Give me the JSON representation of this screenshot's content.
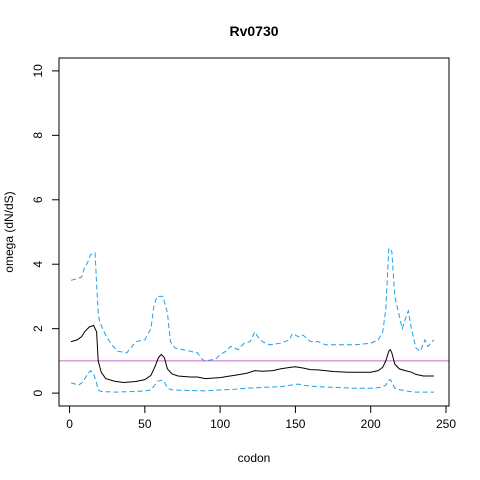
{
  "chart_data": {
    "type": "line",
    "title": "Rv0730",
    "xlabel": "codon",
    "ylabel": "omega (dN/dS)",
    "xlim": [
      -7,
      252
    ],
    "ylim": [
      -0.4,
      10.4
    ],
    "x_ticks": [
      0,
      50,
      100,
      150,
      200,
      250
    ],
    "y_ticks": [
      0,
      2,
      4,
      6,
      8,
      10
    ],
    "grid": false,
    "legend": "none",
    "reference_line": {
      "y": 1,
      "color": "#cc66cc"
    },
    "series": [
      {
        "role": "upper",
        "color": "#1ea0e6",
        "style": "dashed",
        "points": [
          [
            1,
            3.5
          ],
          [
            5,
            3.55
          ],
          [
            8,
            3.6
          ],
          [
            10,
            3.9
          ],
          [
            12,
            4.05
          ],
          [
            14,
            4.3
          ],
          [
            17,
            4.35
          ],
          [
            18,
            3.4
          ],
          [
            19,
            2.5
          ],
          [
            20,
            2.2
          ],
          [
            22,
            2.0
          ],
          [
            24,
            1.8
          ],
          [
            28,
            1.5
          ],
          [
            32,
            1.3
          ],
          [
            38,
            1.25
          ],
          [
            44,
            1.6
          ],
          [
            50,
            1.65
          ],
          [
            54,
            2.0
          ],
          [
            56,
            2.7
          ],
          [
            58,
            3.0
          ],
          [
            62,
            3.0
          ],
          [
            65,
            2.5
          ],
          [
            67,
            1.6
          ],
          [
            70,
            1.4
          ],
          [
            75,
            1.35
          ],
          [
            85,
            1.25
          ],
          [
            88,
            1.05
          ],
          [
            90,
            1.0
          ],
          [
            97,
            1.05
          ],
          [
            100,
            1.2
          ],
          [
            104,
            1.3
          ],
          [
            107,
            1.45
          ],
          [
            112,
            1.35
          ],
          [
            116,
            1.55
          ],
          [
            120,
            1.6
          ],
          [
            123,
            1.9
          ],
          [
            125,
            1.75
          ],
          [
            128,
            1.6
          ],
          [
            133,
            1.5
          ],
          [
            140,
            1.55
          ],
          [
            146,
            1.65
          ],
          [
            148,
            1.85
          ],
          [
            152,
            1.75
          ],
          [
            155,
            1.8
          ],
          [
            160,
            1.6
          ],
          [
            165,
            1.6
          ],
          [
            170,
            1.5
          ],
          [
            175,
            1.5
          ],
          [
            190,
            1.5
          ],
          [
            200,
            1.55
          ],
          [
            205,
            1.65
          ],
          [
            208,
            1.9
          ],
          [
            210,
            2.6
          ],
          [
            212,
            4.5
          ],
          [
            214,
            4.4
          ],
          [
            216,
            3.0
          ],
          [
            218,
            2.6
          ],
          [
            221,
            2.0
          ],
          [
            223,
            2.3
          ],
          [
            225,
            2.55
          ],
          [
            227,
            2.0
          ],
          [
            230,
            1.4
          ],
          [
            233,
            1.3
          ],
          [
            236,
            1.65
          ],
          [
            238,
            1.45
          ],
          [
            242,
            1.65
          ]
        ]
      },
      {
        "role": "estimate",
        "color": "#000000",
        "style": "solid",
        "points": [
          [
            1,
            1.6
          ],
          [
            5,
            1.65
          ],
          [
            8,
            1.75
          ],
          [
            10,
            1.9
          ],
          [
            13,
            2.05
          ],
          [
            16,
            2.1
          ],
          [
            18,
            1.9
          ],
          [
            19,
            1.0
          ],
          [
            21,
            0.65
          ],
          [
            24,
            0.45
          ],
          [
            30,
            0.37
          ],
          [
            36,
            0.33
          ],
          [
            44,
            0.36
          ],
          [
            50,
            0.42
          ],
          [
            54,
            0.55
          ],
          [
            57,
            0.85
          ],
          [
            59,
            1.1
          ],
          [
            61,
            1.2
          ],
          [
            63,
            1.1
          ],
          [
            65,
            0.75
          ],
          [
            68,
            0.6
          ],
          [
            72,
            0.53
          ],
          [
            80,
            0.5
          ],
          [
            85,
            0.5
          ],
          [
            90,
            0.45
          ],
          [
            100,
            0.48
          ],
          [
            105,
            0.52
          ],
          [
            112,
            0.57
          ],
          [
            118,
            0.62
          ],
          [
            123,
            0.7
          ],
          [
            128,
            0.68
          ],
          [
            135,
            0.7
          ],
          [
            140,
            0.75
          ],
          [
            147,
            0.8
          ],
          [
            150,
            0.82
          ],
          [
            155,
            0.78
          ],
          [
            160,
            0.73
          ],
          [
            165,
            0.72
          ],
          [
            175,
            0.67
          ],
          [
            185,
            0.65
          ],
          [
            195,
            0.65
          ],
          [
            200,
            0.65
          ],
          [
            205,
            0.7
          ],
          [
            208,
            0.8
          ],
          [
            210,
            1.0
          ],
          [
            212,
            1.3
          ],
          [
            213,
            1.35
          ],
          [
            214,
            1.25
          ],
          [
            216,
            0.9
          ],
          [
            219,
            0.75
          ],
          [
            223,
            0.7
          ],
          [
            227,
            0.65
          ],
          [
            230,
            0.58
          ],
          [
            235,
            0.53
          ],
          [
            242,
            0.53
          ]
        ]
      },
      {
        "role": "lower",
        "color": "#1ea0e6",
        "style": "dashed",
        "points": [
          [
            1,
            0.32
          ],
          [
            6,
            0.25
          ],
          [
            9,
            0.35
          ],
          [
            12,
            0.6
          ],
          [
            14,
            0.7
          ],
          [
            16,
            0.6
          ],
          [
            18,
            0.3
          ],
          [
            19,
            0.1
          ],
          [
            21,
            0.05
          ],
          [
            30,
            0.03
          ],
          [
            44,
            0.05
          ],
          [
            50,
            0.07
          ],
          [
            54,
            0.1
          ],
          [
            57,
            0.28
          ],
          [
            59,
            0.38
          ],
          [
            61,
            0.4
          ],
          [
            63,
            0.35
          ],
          [
            65,
            0.15
          ],
          [
            68,
            0.1
          ],
          [
            80,
            0.08
          ],
          [
            90,
            0.07
          ],
          [
            100,
            0.1
          ],
          [
            110,
            0.12
          ],
          [
            120,
            0.16
          ],
          [
            130,
            0.18
          ],
          [
            140,
            0.2
          ],
          [
            147,
            0.25
          ],
          [
            152,
            0.28
          ],
          [
            156,
            0.24
          ],
          [
            165,
            0.2
          ],
          [
            175,
            0.18
          ],
          [
            190,
            0.15
          ],
          [
            200,
            0.15
          ],
          [
            207,
            0.18
          ],
          [
            210,
            0.25
          ],
          [
            212,
            0.4
          ],
          [
            213,
            0.42
          ],
          [
            214,
            0.35
          ],
          [
            216,
            0.15
          ],
          [
            220,
            0.1
          ],
          [
            226,
            0.05
          ],
          [
            230,
            0.03
          ],
          [
            242,
            0.03
          ]
        ]
      }
    ]
  }
}
